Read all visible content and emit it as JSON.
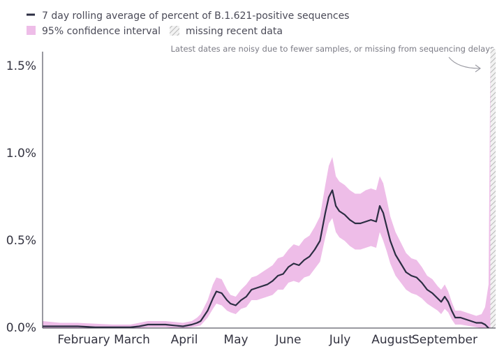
{
  "chart_data": {
    "type": "line",
    "legend": {
      "line_label": "7 day rolling average of percent of B.1.621-positive sequences",
      "band_label": "95% confidence interval",
      "missing_label": "missing recent data",
      "placement": "top-left"
    },
    "annotation": "Latest dates are noisy due to fewer samples, or missing from sequencing delays",
    "y_ticks": [
      "0.0%",
      "0.5%",
      "1.0%",
      "1.5%"
    ],
    "y_tick_values": [
      0,
      0.5,
      1.0,
      1.5
    ],
    "ylim": [
      0,
      1.6
    ],
    "x_ticks": [
      {
        "label": "February",
        "day": 31
      },
      {
        "label": "March",
        "day": 59
      },
      {
        "label": "April",
        "day": 90
      },
      {
        "label": "May",
        "day": 120
      },
      {
        "label": "June",
        "day": 151
      },
      {
        "label": "July",
        "day": 181
      },
      {
        "label": "August",
        "day": 212
      },
      {
        "label": "September",
        "day": 243
      }
    ],
    "xlim": [
      0,
      258
    ],
    "missing_range": [
      255,
      258
    ],
    "grid": false,
    "colors": {
      "line": "#2b2d42",
      "band": "#eebde8",
      "missing": "#bdbdbd",
      "axis": "#333340"
    },
    "series": [
      {
        "points": [
          [
            0,
            0.01
          ],
          [
            10,
            0.01
          ],
          [
            20,
            0.01
          ],
          [
            30,
            0.005
          ],
          [
            40,
            0.005
          ],
          [
            47,
            0.005
          ],
          [
            50,
            0.005
          ],
          [
            55,
            0.01
          ],
          [
            60,
            0.02
          ],
          [
            65,
            0.02
          ],
          [
            70,
            0.02
          ],
          [
            75,
            0.015
          ],
          [
            80,
            0.01
          ],
          [
            85,
            0.02
          ],
          [
            88,
            0.03
          ],
          [
            90,
            0.04
          ],
          [
            94,
            0.1
          ],
          [
            97,
            0.17
          ],
          [
            99,
            0.21
          ],
          [
            102,
            0.2
          ],
          [
            105,
            0.16
          ],
          [
            107,
            0.14
          ],
          [
            110,
            0.13
          ],
          [
            113,
            0.16
          ],
          [
            116,
            0.18
          ],
          [
            119,
            0.22
          ],
          [
            122,
            0.23
          ],
          [
            125,
            0.24
          ],
          [
            128,
            0.25
          ],
          [
            131,
            0.27
          ],
          [
            134,
            0.3
          ],
          [
            137,
            0.31
          ],
          [
            140,
            0.35
          ],
          [
            143,
            0.37
          ],
          [
            146,
            0.36
          ],
          [
            149,
            0.39
          ],
          [
            152,
            0.41
          ],
          [
            155,
            0.45
          ],
          [
            158,
            0.5
          ],
          [
            161,
            0.66
          ],
          [
            163,
            0.75
          ],
          [
            165,
            0.79
          ],
          [
            167,
            0.7
          ],
          [
            169,
            0.67
          ],
          [
            172,
            0.65
          ],
          [
            175,
            0.62
          ],
          [
            178,
            0.6
          ],
          [
            181,
            0.6
          ],
          [
            184,
            0.61
          ],
          [
            187,
            0.62
          ],
          [
            190,
            0.61
          ],
          [
            192,
            0.7
          ],
          [
            194,
            0.66
          ],
          [
            196,
            0.58
          ],
          [
            198,
            0.5
          ],
          [
            201,
            0.42
          ],
          [
            204,
            0.37
          ],
          [
            207,
            0.32
          ],
          [
            210,
            0.3
          ],
          [
            213,
            0.29
          ],
          [
            216,
            0.26
          ],
          [
            219,
            0.22
          ],
          [
            222,
            0.2
          ],
          [
            225,
            0.17
          ],
          [
            227,
            0.15
          ],
          [
            229,
            0.18
          ],
          [
            231,
            0.15
          ],
          [
            233,
            0.1
          ],
          [
            235,
            0.06
          ],
          [
            238,
            0.06
          ],
          [
            241,
            0.05
          ],
          [
            244,
            0.04
          ],
          [
            247,
            0.03
          ],
          [
            250,
            0.03
          ],
          [
            252,
            0.02
          ],
          [
            254,
            0.0
          ]
        ],
        "band_upper": [
          [
            0,
            0.04
          ],
          [
            10,
            0.03
          ],
          [
            20,
            0.03
          ],
          [
            30,
            0.025
          ],
          [
            40,
            0.02
          ],
          [
            47,
            0.02
          ],
          [
            50,
            0.02
          ],
          [
            55,
            0.03
          ],
          [
            60,
            0.04
          ],
          [
            65,
            0.04
          ],
          [
            70,
            0.04
          ],
          [
            75,
            0.035
          ],
          [
            80,
            0.03
          ],
          [
            85,
            0.04
          ],
          [
            88,
            0.06
          ],
          [
            90,
            0.08
          ],
          [
            94,
            0.16
          ],
          [
            97,
            0.25
          ],
          [
            99,
            0.29
          ],
          [
            102,
            0.28
          ],
          [
            105,
            0.22
          ],
          [
            107,
            0.19
          ],
          [
            110,
            0.18
          ],
          [
            113,
            0.22
          ],
          [
            116,
            0.25
          ],
          [
            119,
            0.29
          ],
          [
            122,
            0.3
          ],
          [
            125,
            0.32
          ],
          [
            128,
            0.34
          ],
          [
            131,
            0.36
          ],
          [
            134,
            0.4
          ],
          [
            137,
            0.41
          ],
          [
            140,
            0.45
          ],
          [
            143,
            0.48
          ],
          [
            146,
            0.47
          ],
          [
            149,
            0.51
          ],
          [
            152,
            0.53
          ],
          [
            155,
            0.58
          ],
          [
            158,
            0.64
          ],
          [
            161,
            0.82
          ],
          [
            163,
            0.93
          ],
          [
            165,
            0.98
          ],
          [
            167,
            0.87
          ],
          [
            169,
            0.84
          ],
          [
            172,
            0.82
          ],
          [
            175,
            0.79
          ],
          [
            178,
            0.77
          ],
          [
            181,
            0.77
          ],
          [
            184,
            0.79
          ],
          [
            187,
            0.8
          ],
          [
            190,
            0.79
          ],
          [
            192,
            0.87
          ],
          [
            194,
            0.83
          ],
          [
            196,
            0.74
          ],
          [
            198,
            0.64
          ],
          [
            201,
            0.55
          ],
          [
            204,
            0.49
          ],
          [
            207,
            0.43
          ],
          [
            210,
            0.4
          ],
          [
            213,
            0.39
          ],
          [
            216,
            0.35
          ],
          [
            219,
            0.3
          ],
          [
            222,
            0.28
          ],
          [
            225,
            0.24
          ],
          [
            227,
            0.22
          ],
          [
            229,
            0.25
          ],
          [
            231,
            0.21
          ],
          [
            233,
            0.15
          ],
          [
            235,
            0.1
          ],
          [
            238,
            0.1
          ],
          [
            241,
            0.09
          ],
          [
            244,
            0.08
          ],
          [
            247,
            0.07
          ],
          [
            250,
            0.08
          ],
          [
            252,
            0.12
          ],
          [
            254,
            0.25
          ],
          [
            255,
            1.55
          ]
        ],
        "band_lower": [
          [
            0,
            0.0
          ],
          [
            10,
            0.0
          ],
          [
            20,
            0.0
          ],
          [
            30,
            0.0
          ],
          [
            40,
            0.0
          ],
          [
            47,
            0.0
          ],
          [
            50,
            0.0
          ],
          [
            55,
            0.0
          ],
          [
            60,
            0.005
          ],
          [
            65,
            0.005
          ],
          [
            70,
            0.005
          ],
          [
            75,
            0.0
          ],
          [
            80,
            0.0
          ],
          [
            85,
            0.005
          ],
          [
            88,
            0.01
          ],
          [
            90,
            0.015
          ],
          [
            94,
            0.06
          ],
          [
            97,
            0.11
          ],
          [
            99,
            0.14
          ],
          [
            102,
            0.13
          ],
          [
            105,
            0.1
          ],
          [
            107,
            0.09
          ],
          [
            110,
            0.08
          ],
          [
            113,
            0.11
          ],
          [
            116,
            0.12
          ],
          [
            119,
            0.16
          ],
          [
            122,
            0.16
          ],
          [
            125,
            0.17
          ],
          [
            128,
            0.18
          ],
          [
            131,
            0.19
          ],
          [
            134,
            0.22
          ],
          [
            137,
            0.22
          ],
          [
            140,
            0.26
          ],
          [
            143,
            0.27
          ],
          [
            146,
            0.26
          ],
          [
            149,
            0.29
          ],
          [
            152,
            0.3
          ],
          [
            155,
            0.34
          ],
          [
            158,
            0.38
          ],
          [
            161,
            0.52
          ],
          [
            163,
            0.6
          ],
          [
            165,
            0.63
          ],
          [
            167,
            0.55
          ],
          [
            169,
            0.52
          ],
          [
            172,
            0.5
          ],
          [
            175,
            0.47
          ],
          [
            178,
            0.45
          ],
          [
            181,
            0.45
          ],
          [
            184,
            0.46
          ],
          [
            187,
            0.47
          ],
          [
            190,
            0.46
          ],
          [
            192,
            0.55
          ],
          [
            194,
            0.5
          ],
          [
            196,
            0.44
          ],
          [
            198,
            0.37
          ],
          [
            201,
            0.3
          ],
          [
            204,
            0.26
          ],
          [
            207,
            0.22
          ],
          [
            210,
            0.2
          ],
          [
            213,
            0.19
          ],
          [
            216,
            0.17
          ],
          [
            219,
            0.14
          ],
          [
            222,
            0.12
          ],
          [
            225,
            0.1
          ],
          [
            227,
            0.08
          ],
          [
            229,
            0.11
          ],
          [
            231,
            0.09
          ],
          [
            233,
            0.05
          ],
          [
            235,
            0.02
          ],
          [
            238,
            0.02
          ],
          [
            241,
            0.015
          ],
          [
            244,
            0.01
          ],
          [
            247,
            0.005
          ],
          [
            250,
            0.0
          ],
          [
            252,
            0.0
          ],
          [
            254,
            0.0
          ],
          [
            255,
            0.0
          ]
        ]
      }
    ]
  }
}
